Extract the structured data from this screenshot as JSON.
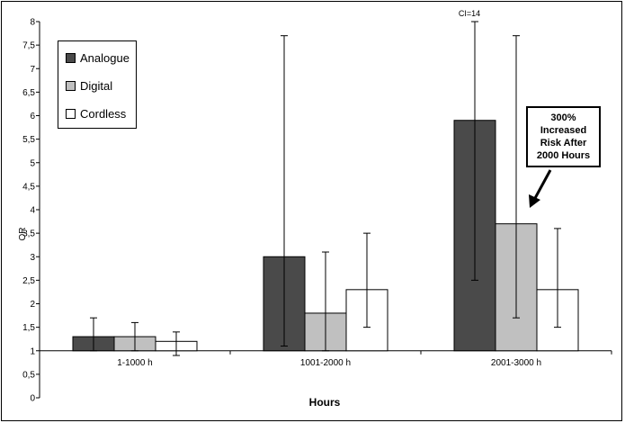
{
  "chart_data": {
    "type": "bar",
    "categories": [
      "1-1000 h",
      "1001-2000 h",
      "2001-3000 h"
    ],
    "series": [
      {
        "name": "Analogue",
        "color": "#4a4a4a",
        "values": [
          1.3,
          3.0,
          5.9
        ],
        "ci_low": [
          1.0,
          1.1,
          2.5
        ],
        "ci_high": [
          1.7,
          7.7,
          8.0
        ]
      },
      {
        "name": "Digital",
        "color": "#c0c0c0",
        "values": [
          1.3,
          1.8,
          3.7
        ],
        "ci_low": [
          1.0,
          1.0,
          1.7
        ],
        "ci_high": [
          1.6,
          3.1,
          7.7
        ]
      },
      {
        "name": "Cordless",
        "color": "#ffffff",
        "values": [
          1.2,
          2.3,
          2.3
        ],
        "ci_low": [
          0.9,
          1.5,
          1.5
        ],
        "ci_high": [
          1.4,
          3.5,
          3.6
        ]
      }
    ],
    "xlabel": "Hours",
    "ylabel": "OR",
    "ylim": [
      0,
      8
    ],
    "yticks": [
      "0",
      "0,5",
      "1",
      "1,5",
      "2",
      "2,5",
      "3",
      "3,5",
      "4",
      "4,5",
      "5",
      "5,5",
      "6",
      "6,5",
      "7",
      "7,5",
      "8"
    ],
    "grid": false,
    "legend_position": "top-left",
    "annotations": {
      "ci_note": "CI=14",
      "callout": "300%\nIncreased\nRisk After\n2000 Hours"
    }
  }
}
